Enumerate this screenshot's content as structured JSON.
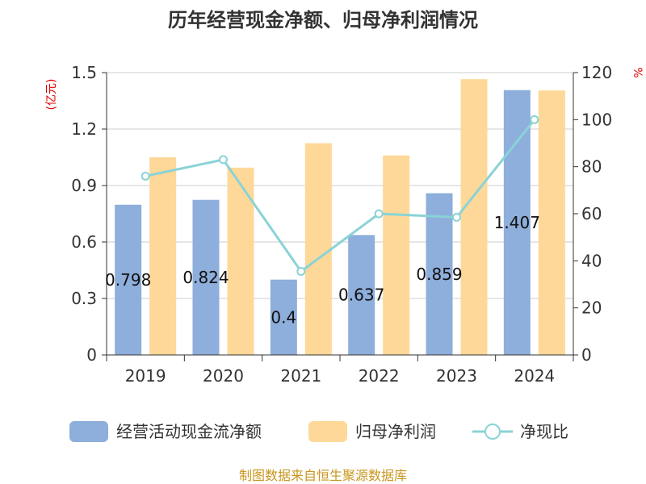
{
  "colors": {
    "operating_cash": "#8eaedb",
    "net_profit": "#fdd898",
    "ratio_line": "#8ad3d6",
    "axis": "#333333",
    "grid": "#cccccc",
    "unit_text": "#e00000",
    "source_text": "#c8961e"
  },
  "chart_data": {
    "type": "bar",
    "title": "历年经营现金净额、归母净利润情况",
    "categories": [
      "2019",
      "2020",
      "2021",
      "2022",
      "2023",
      "2024"
    ],
    "series": [
      {
        "name": "经营活动现金流净额",
        "kind": "bar",
        "axis": "left",
        "values": [
          0.798,
          0.824,
          0.4,
          0.637,
          0.859,
          1.407
        ],
        "labels": [
          "0.798",
          "0.824",
          "0.4",
          "0.637",
          "0.859",
          "1.407"
        ]
      },
      {
        "name": "归母净利润",
        "kind": "bar",
        "axis": "left",
        "values": [
          1.05,
          0.995,
          1.125,
          1.06,
          1.465,
          1.405
        ]
      },
      {
        "name": "净现比",
        "kind": "line",
        "axis": "right",
        "values": [
          76,
          83,
          35.5,
          60,
          58.5,
          100
        ]
      }
    ],
    "y_left": {
      "unit": "(亿元)",
      "min": 0,
      "max": 1.5,
      "ticks": [
        "0",
        "0.3",
        "0.6",
        "0.9",
        "1.2",
        "1.5"
      ]
    },
    "y_right": {
      "unit": "%",
      "min": 0,
      "max": 120,
      "ticks": [
        "0",
        "20",
        "40",
        "60",
        "80",
        "100",
        "120"
      ]
    },
    "grid": true,
    "legend_position": "bottom"
  },
  "source": "制图数据来自恒生聚源数据库"
}
